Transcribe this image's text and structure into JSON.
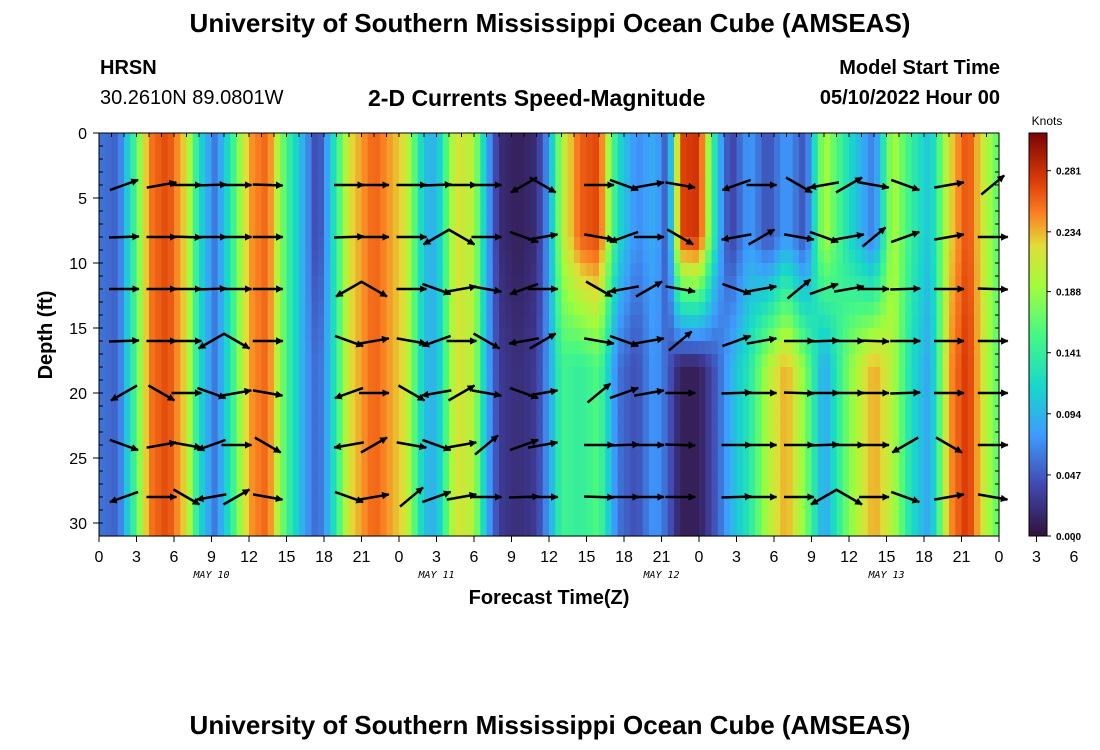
{
  "header": {
    "title": "University of Southern Mississippi Ocean Cube (AMSEAS)",
    "station": "HRSN",
    "coords": "30.2610N  89.0801W",
    "plot_title": "2-D Currents Speed-Magnitude",
    "model_label": "Model Start Time",
    "model_time": "05/10/2022 Hour 00",
    "footer_title": "University of Southern Mississippi Ocean Cube (AMSEAS)"
  },
  "chart_data": {
    "type": "heatmap",
    "title": "2-D Currents Speed-Magnitude",
    "xlabel": "Forecast Time(Z)",
    "ylabel": "Depth (ft)",
    "x_range_hours": [
      0,
      72
    ],
    "y_range_ft": [
      0,
      31
    ],
    "x_tick_labels": [
      "0",
      "3",
      "6",
      "9",
      "12",
      "15",
      "18",
      "21",
      "0",
      "3",
      "6",
      "9",
      "12",
      "15",
      "18",
      "21",
      "0",
      "3",
      "6",
      "9",
      "12",
      "15",
      "18",
      "21",
      "0",
      "3",
      "6",
      "9",
      "12",
      "15",
      "18",
      "21",
      "0"
    ],
    "y_tick_labels": [
      "0",
      "5",
      "10",
      "15",
      "20",
      "25",
      "30"
    ],
    "y_tick_values": [
      0,
      5,
      10,
      15,
      20,
      25,
      30
    ],
    "date_labels": [
      "MAY 10",
      "MAY 11",
      "MAY 12",
      "MAY 13"
    ],
    "date_label_hours": [
      9,
      27,
      45,
      63
    ],
    "colorbar": {
      "unit": "Knots",
      "min": 0.0,
      "max": 0.31,
      "tick_labels": [
        "0.281",
        "0.234",
        "0.188",
        "0.141",
        "0.094",
        "0.047",
        "0.000"
      ],
      "tick_values": [
        0.281,
        0.234,
        0.188,
        0.141,
        0.094,
        0.047,
        0.0
      ]
    },
    "speed_profile_upper": [
      {
        "h": 0,
        "v": 0.06
      },
      {
        "h": 1.5,
        "v": 0.05
      },
      {
        "h": 3,
        "v": 0.16
      },
      {
        "h": 4,
        "v": 0.25
      },
      {
        "h": 5.5,
        "v": 0.27
      },
      {
        "h": 7,
        "v": 0.22
      },
      {
        "h": 8,
        "v": 0.12
      },
      {
        "h": 9.3,
        "v": 0.06
      },
      {
        "h": 10.5,
        "v": 0.13
      },
      {
        "h": 12,
        "v": 0.24
      },
      {
        "h": 13.5,
        "v": 0.26
      },
      {
        "h": 15,
        "v": 0.15
      },
      {
        "h": 16.5,
        "v": 0.08
      },
      {
        "h": 17.5,
        "v": 0.03
      },
      {
        "h": 18.5,
        "v": 0.1
      },
      {
        "h": 20,
        "v": 0.22
      },
      {
        "h": 22,
        "v": 0.26
      },
      {
        "h": 24.5,
        "v": 0.22
      },
      {
        "h": 26,
        "v": 0.1
      },
      {
        "h": 27,
        "v": 0.09
      },
      {
        "h": 28.5,
        "v": 0.22
      },
      {
        "h": 30,
        "v": 0.2
      },
      {
        "h": 31,
        "v": 0.09
      },
      {
        "h": 32,
        "v": 0.02
      },
      {
        "h": 33.5,
        "v": 0.01
      },
      {
        "h": 35,
        "v": 0.02
      },
      {
        "h": 36,
        "v": 0.08
      },
      {
        "h": 37,
        "v": 0.2
      },
      {
        "h": 38.5,
        "v": 0.26
      },
      {
        "h": 40,
        "v": 0.27
      },
      {
        "h": 41.5,
        "v": 0.12
      },
      {
        "h": 43,
        "v": 0.07
      },
      {
        "h": 44.5,
        "v": 0.09
      },
      {
        "h": 45.5,
        "v": 0.04
      },
      {
        "h": 46.5,
        "v": 0.27
      },
      {
        "h": 48,
        "v": 0.28
      },
      {
        "h": 49.5,
        "v": 0.1
      },
      {
        "h": 50.5,
        "v": 0.03
      },
      {
        "h": 52,
        "v": 0.08
      },
      {
        "h": 53.5,
        "v": 0.04
      },
      {
        "h": 55,
        "v": 0.08
      },
      {
        "h": 56.5,
        "v": 0.04
      },
      {
        "h": 58,
        "v": 0.2
      },
      {
        "h": 60,
        "v": 0.12
      },
      {
        "h": 62,
        "v": 0.06
      },
      {
        "h": 63.5,
        "v": 0.2
      },
      {
        "h": 65,
        "v": 0.14
      },
      {
        "h": 66.5,
        "v": 0.1
      },
      {
        "h": 68,
        "v": 0.22
      },
      {
        "h": 69.5,
        "v": 0.27
      },
      {
        "h": 71,
        "v": 0.2
      },
      {
        "h": 72,
        "v": 0.16
      }
    ],
    "speed_profile_lower": [
      {
        "h": 0,
        "v": 0.06
      },
      {
        "h": 1.5,
        "v": 0.05
      },
      {
        "h": 3,
        "v": 0.16
      },
      {
        "h": 4,
        "v": 0.25
      },
      {
        "h": 5.5,
        "v": 0.27
      },
      {
        "h": 7,
        "v": 0.22
      },
      {
        "h": 8,
        "v": 0.12
      },
      {
        "h": 9.3,
        "v": 0.06
      },
      {
        "h": 10.5,
        "v": 0.13
      },
      {
        "h": 12,
        "v": 0.24
      },
      {
        "h": 13.5,
        "v": 0.26
      },
      {
        "h": 15,
        "v": 0.15
      },
      {
        "h": 16.5,
        "v": 0.08
      },
      {
        "h": 17.5,
        "v": 0.05
      },
      {
        "h": 18.5,
        "v": 0.1
      },
      {
        "h": 20,
        "v": 0.22
      },
      {
        "h": 22,
        "v": 0.26
      },
      {
        "h": 24.5,
        "v": 0.22
      },
      {
        "h": 26,
        "v": 0.1
      },
      {
        "h": 27,
        "v": 0.09
      },
      {
        "h": 28.5,
        "v": 0.22
      },
      {
        "h": 30,
        "v": 0.2
      },
      {
        "h": 31,
        "v": 0.09
      },
      {
        "h": 32,
        "v": 0.03
      },
      {
        "h": 33.5,
        "v": 0.02
      },
      {
        "h": 35,
        "v": 0.03
      },
      {
        "h": 36,
        "v": 0.08
      },
      {
        "h": 37,
        "v": 0.15
      },
      {
        "h": 38.5,
        "v": 0.14
      },
      {
        "h": 40,
        "v": 0.16
      },
      {
        "h": 41.5,
        "v": 0.06
      },
      {
        "h": 43,
        "v": 0.04
      },
      {
        "h": 44.5,
        "v": 0.08
      },
      {
        "h": 45.5,
        "v": 0.05
      },
      {
        "h": 46.5,
        "v": 0.01
      },
      {
        "h": 48,
        "v": 0.01
      },
      {
        "h": 49.5,
        "v": 0.05
      },
      {
        "h": 50.5,
        "v": 0.09
      },
      {
        "h": 52,
        "v": 0.13
      },
      {
        "h": 53.5,
        "v": 0.2
      },
      {
        "h": 55,
        "v": 0.24
      },
      {
        "h": 56.5,
        "v": 0.18
      },
      {
        "h": 58,
        "v": 0.08
      },
      {
        "h": 60,
        "v": 0.18
      },
      {
        "h": 62,
        "v": 0.24
      },
      {
        "h": 63.5,
        "v": 0.2
      },
      {
        "h": 65,
        "v": 0.12
      },
      {
        "h": 66.5,
        "v": 0.08
      },
      {
        "h": 68,
        "v": 0.24
      },
      {
        "h": 69.5,
        "v": 0.28
      },
      {
        "h": 71,
        "v": 0.2
      },
      {
        "h": 72,
        "v": 0.16
      }
    ],
    "vector_depths_ft": [
      4,
      8,
      12,
      16,
      20,
      24,
      28
    ],
    "vector_hours": [
      2,
      5,
      7,
      9,
      11,
      13.5,
      20,
      22,
      25,
      27,
      29,
      31,
      34,
      35.5,
      40,
      42,
      44,
      46.5,
      51,
      53,
      56,
      58,
      60,
      62,
      64.5,
      68,
      71.5
    ],
    "vector_angles_deg": [
      -20,
      -10,
      0,
      -2,
      0,
      2,
      0,
      0,
      0,
      -2,
      0,
      0,
      150,
      30,
      0,
      20,
      -10,
      10,
      160,
      0,
      30,
      170,
      -30,
      10,
      20,
      -10,
      -40
    ]
  }
}
